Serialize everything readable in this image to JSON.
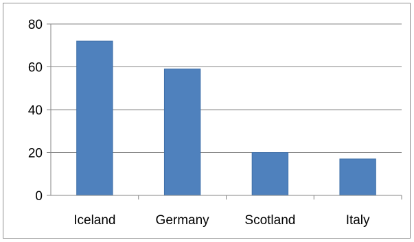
{
  "chart_data": {
    "type": "bar",
    "categories": [
      "Iceland",
      "Germany",
      "Scotland",
      "Italy"
    ],
    "values": [
      72,
      59,
      20,
      17
    ],
    "ylim": [
      0,
      80
    ],
    "yticks": [
      0,
      20,
      40,
      60,
      80
    ],
    "grid": true,
    "legend": "none",
    "title": "",
    "xlabel": "",
    "ylabel": "",
    "colors": {
      "bar": "#4f81bd",
      "bar_edge": "#3f6fa8",
      "gridline": "#868686",
      "axis": "#868686"
    }
  }
}
